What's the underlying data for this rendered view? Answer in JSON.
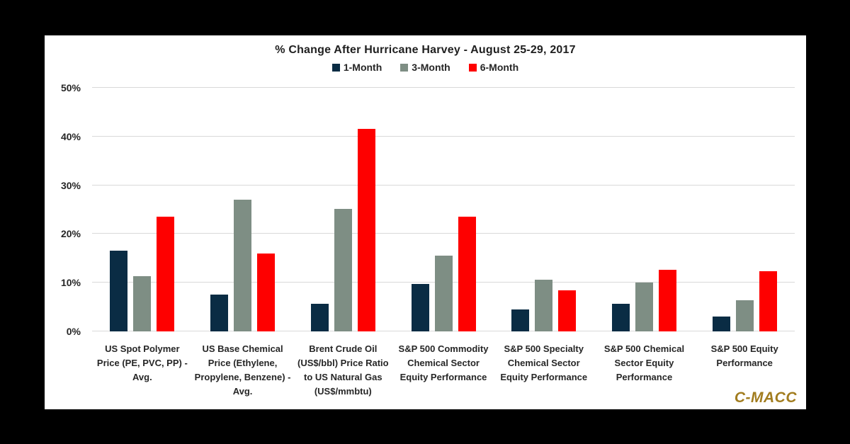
{
  "header": {
    "title": "% Change After Hurricane Harvey - August 25-29, 2017"
  },
  "chart_data": {
    "type": "bar",
    "title": "% Change After Hurricane Harvey - August 25-29, 2017",
    "categories": [
      "US Spot Polymer Price (PE, PVC, PP) - Avg.",
      "US Base Chemical Price (Ethylene, Propylene, Benzene) - Avg.",
      "Brent Crude Oil (US$/bbl) Price Ratio to US Natural Gas (US$/mmbtu)",
      "S&P 500 Commodity Chemical Sector Equity Performance",
      "S&P 500 Specialty Chemical Sector Equity Performance",
      "S&P 500 Chemical Sector Equity Performance",
      "S&P 500 Equity Performance"
    ],
    "series": [
      {
        "name": "1-Month",
        "color": "#0A2C44",
        "values": [
          16.6,
          7.5,
          5.6,
          9.7,
          4.5,
          5.6,
          3.1
        ]
      },
      {
        "name": "3-Month",
        "color": "#7E8E84",
        "values": [
          11.4,
          27.0,
          25.2,
          15.6,
          10.6,
          10.0,
          6.4
        ]
      },
      {
        "name": "6-Month",
        "color": "#FE0000",
        "values": [
          23.5,
          16.0,
          41.5,
          23.6,
          8.5,
          12.7,
          12.4
        ]
      }
    ],
    "ylim": [
      0,
      50
    ],
    "yticks": [
      {
        "value": 0,
        "label": "0%"
      },
      {
        "value": 10,
        "label": "10%"
      },
      {
        "value": 20,
        "label": "20%"
      },
      {
        "value": 30,
        "label": "30%"
      },
      {
        "value": 40,
        "label": "40%"
      },
      {
        "value": 50,
        "label": "50%"
      }
    ],
    "grid": true,
    "legend_position": "top"
  },
  "branding": {
    "logo_text": "C-MACC",
    "logo_color": "#A17C1E"
  },
  "colors": {
    "background": "#000000",
    "panel": "#FFFFFF",
    "gridline": "#D9D9D9",
    "text": "#262626"
  }
}
